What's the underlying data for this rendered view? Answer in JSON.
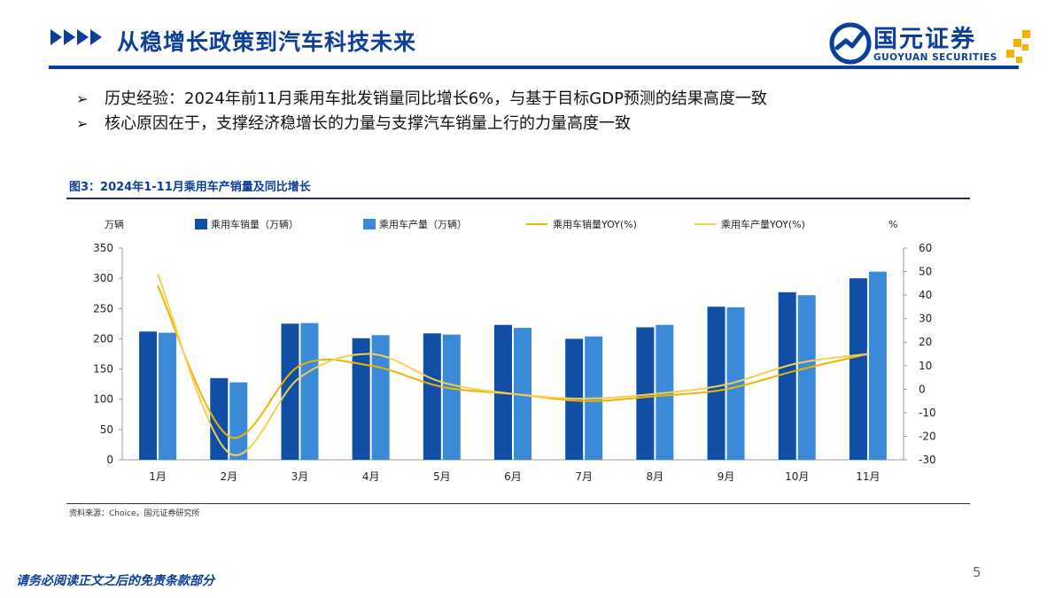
{
  "header": {
    "title": "从稳增长政策到汽车科技未来",
    "logo_cn": "国元证券",
    "logo_en": "GUOYUAN SECURITIES"
  },
  "bullets": [
    "历史经验：2024年前11月乘用车批发销量同比增长6%，与基于目标GDP预测的结果高度一致",
    "核心原因在于，支撑经济稳增长的力量与支撑汽车销量上行的力量高度一致"
  ],
  "figure": {
    "title": "图3：2024年1-11月乘用车产销量及同比增长",
    "source": "资料来源：Choice，国元证券研究所"
  },
  "footer": {
    "disclaimer": "请务必阅读正文之后的免责条款部分",
    "page": "5"
  },
  "colors": {
    "brand_blue": "#0b3f9a",
    "sales_bar": "#0f4fa8",
    "production_bar": "#3b8ad8",
    "sales_yoy": "#f0b400",
    "production_yoy": "#f5d050"
  },
  "chart_data": {
    "type": "bar",
    "categories": [
      "1月",
      "2月",
      "3月",
      "4月",
      "5月",
      "6月",
      "7月",
      "8月",
      "9月",
      "10月",
      "11月"
    ],
    "y_left_label": "万辆",
    "y_right_label": "%",
    "y_left_range": [
      0,
      350
    ],
    "y_left_ticks": [
      "0",
      "50",
      "100",
      "150",
      "200",
      "250",
      "300",
      "350"
    ],
    "y_right_range": [
      -30,
      60
    ],
    "y_right_ticks": [
      "-30",
      "-20",
      "-10",
      "0",
      "10",
      "20",
      "30",
      "40",
      "50",
      "60"
    ],
    "legend_position": "top",
    "grid": false,
    "series": [
      {
        "name": "乘用车销量（万辆）",
        "kind": "bar",
        "axis": "left",
        "color": "#0f4fa8",
        "values": [
          212,
          135,
          225,
          201,
          209,
          223,
          200,
          219,
          253,
          277,
          300
        ]
      },
      {
        "name": "乘用车产量（万辆）",
        "kind": "bar",
        "axis": "left",
        "color": "#3b8ad8",
        "values": [
          210,
          128,
          226,
          206,
          207,
          218,
          204,
          223,
          252,
          272,
          311
        ]
      },
      {
        "name": "乘用车销量YOY(%)",
        "kind": "line",
        "axis": "right",
        "color": "#f0b400",
        "values": [
          44,
          -20,
          10,
          10,
          1,
          -2,
          -5,
          -3,
          0,
          8,
          15
        ]
      },
      {
        "name": "乘用车产量YOY(%)",
        "kind": "line",
        "axis": "right",
        "color": "#f5d050",
        "values": [
          49,
          -27,
          5,
          15,
          3,
          -2,
          -4,
          -2,
          2,
          11,
          15
        ]
      }
    ]
  }
}
